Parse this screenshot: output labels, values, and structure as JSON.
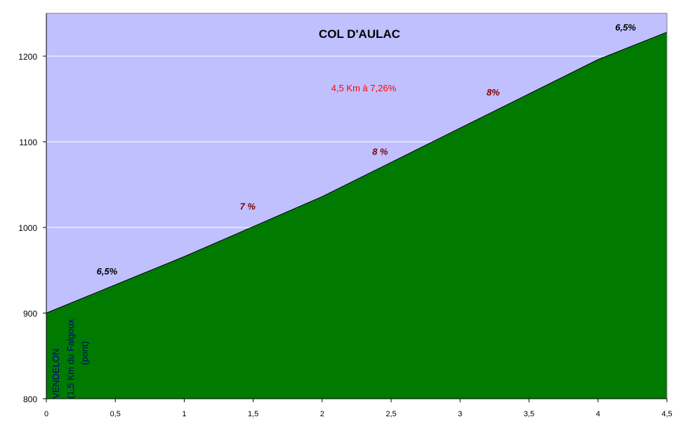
{
  "chart_data": {
    "type": "area",
    "title": "COL D'AULAC",
    "subtitle": "4,5 Km à 7,26%",
    "x_tick_labels": [
      "0",
      "0,5",
      "1",
      "1,5",
      "2",
      "2,5",
      "3",
      "3,5",
      "4",
      "4,5"
    ],
    "y_tick_labels": [
      "800",
      "900",
      "1000",
      "1100",
      "1200"
    ],
    "xlim": [
      0,
      4.5
    ],
    "ylim": [
      800,
      1250
    ],
    "grid": "horizontal",
    "colors": {
      "plot_bg": "#c0c0ff",
      "area_fill": "#007a00",
      "area_line": "#000000",
      "grid": "#ffffff",
      "subtitle": "#ff0000",
      "grade_dark": "#800000",
      "grade_black": "#000000",
      "start_label": "#000080"
    },
    "series": [
      {
        "x": [
          0,
          0.5,
          1,
          1.5,
          2,
          2.5,
          3,
          3.5,
          4,
          4.5
        ],
        "y": [
          900,
          933,
          966,
          1001,
          1036,
          1076,
          1116,
          1156,
          1196,
          1228
        ]
      }
    ],
    "annotations": [
      {
        "text": "6,5%",
        "x": 0.44,
        "y": 945,
        "color": "#000000"
      },
      {
        "text": "7 %",
        "x": 1.46,
        "y": 1021,
        "color": "#800000"
      },
      {
        "text": "8 %",
        "x": 2.42,
        "y": 1085,
        "color": "#800000"
      },
      {
        "text": "8%",
        "x": 3.24,
        "y": 1154,
        "color": "#800000"
      },
      {
        "text": "6,5%",
        "x": 4.2,
        "y": 1230,
        "color": "#000000"
      }
    ],
    "start_label_lines": [
      "VENDELON",
      "(1,5 Km du Falgoux",
      "(pont)"
    ]
  }
}
